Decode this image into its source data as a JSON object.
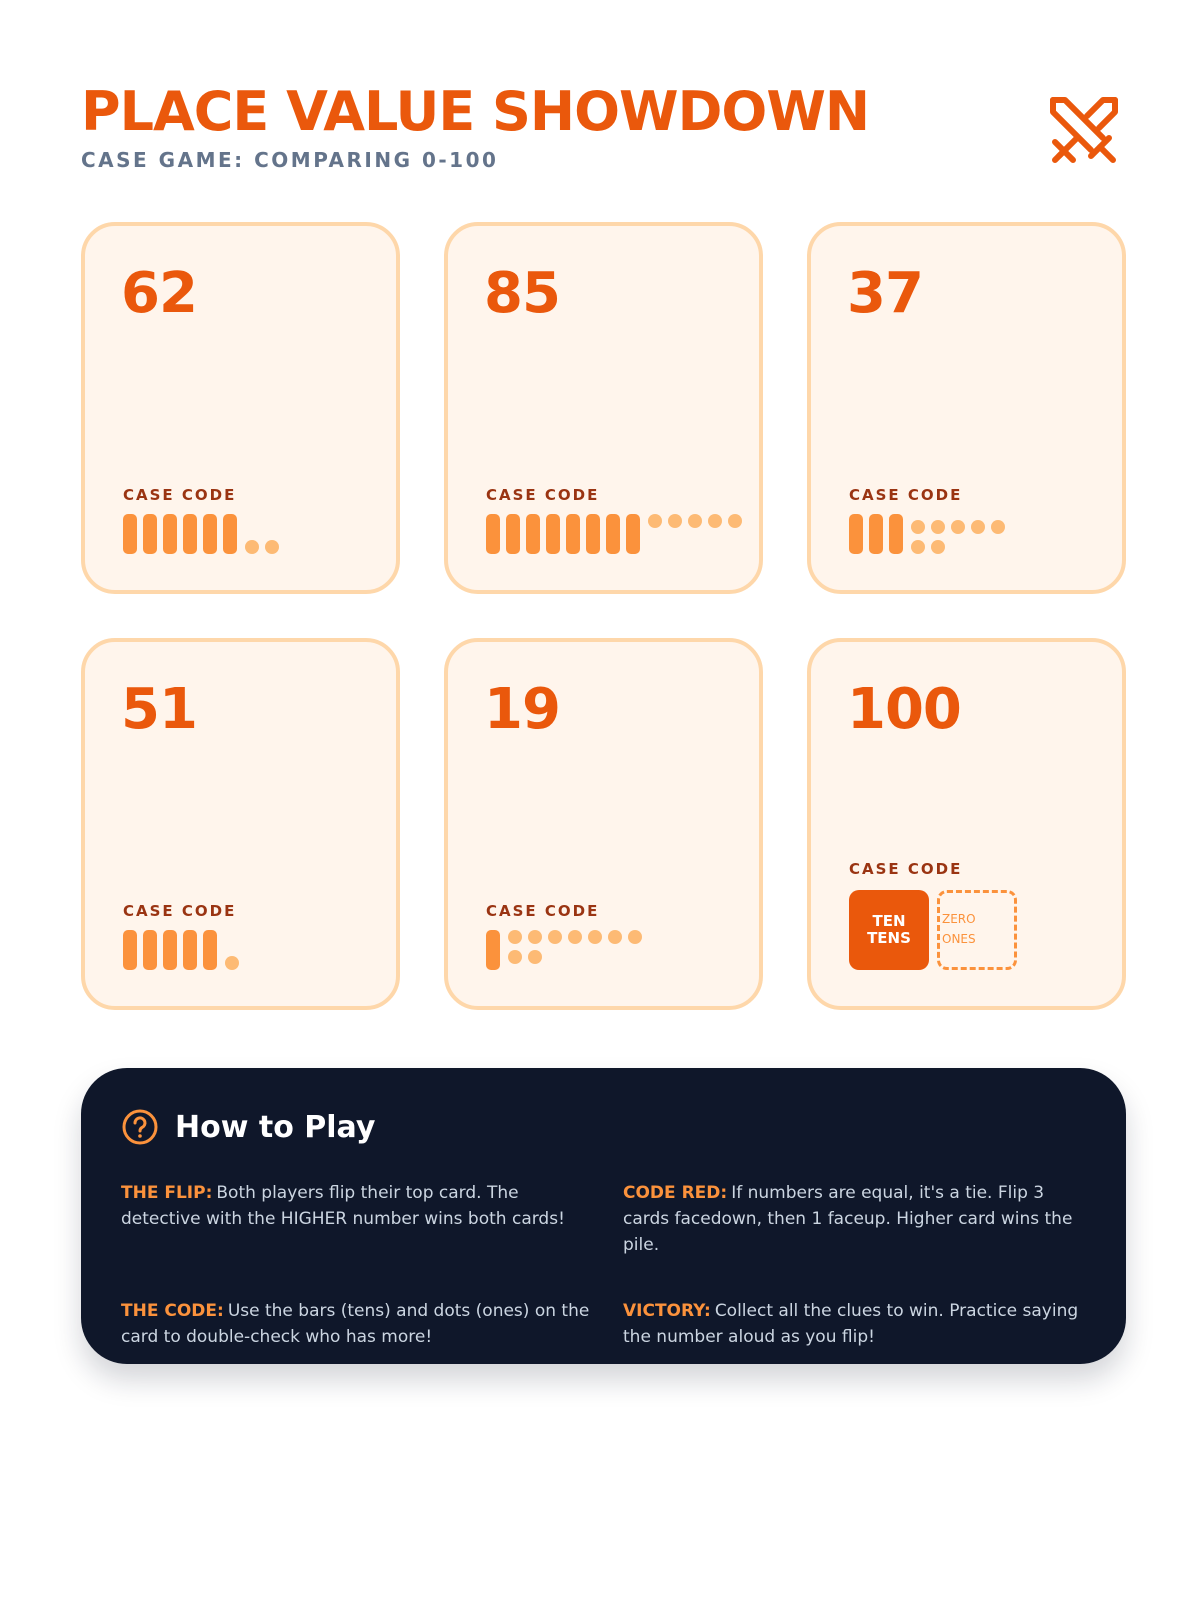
{
  "header": {
    "title": "PLACE VALUE SHOWDOWN",
    "subtitle": "CASE GAME: COMPARING 0-100",
    "icon": "crossed-swords-icon"
  },
  "colors": {
    "accent": "#ea580c",
    "card_bg": "#fff5ec",
    "card_border": "#fed7aa",
    "bar": "#fb923c",
    "dot": "#fdba74",
    "panel_bg": "#0f172a",
    "subtitle": "#64748b"
  },
  "cards": [
    {
      "number": "62",
      "code_label": "CASE CODE",
      "tens": 6,
      "ones": 2
    },
    {
      "number": "85",
      "code_label": "CASE CODE",
      "tens": 8,
      "ones": 5
    },
    {
      "number": "37",
      "code_label": "CASE CODE",
      "tens": 3,
      "ones": 7
    },
    {
      "number": "51",
      "code_label": "CASE CODE",
      "tens": 5,
      "ones": 1
    },
    {
      "number": "19",
      "code_label": "CASE CODE",
      "tens": 1,
      "ones": 9
    },
    {
      "number": "100",
      "code_label": "CASE CODE",
      "tens_box_line1": "TEN",
      "tens_box_line2": "TENS",
      "ones_box_line1": "ZERO",
      "ones_box_line2": "ONES"
    }
  ],
  "how_to_play": {
    "title": "How to Play",
    "icon": "question-circle-icon",
    "rules": [
      {
        "key": "THE FLIP:",
        "text": "Both players flip their top card. The detective with the HIGHER number wins both cards!"
      },
      {
        "key": "CODE RED:",
        "text": "If numbers are equal, it's a tie. Flip 3 cards facedown, then 1 faceup. Higher card wins the pile."
      },
      {
        "key": "THE CODE:",
        "text": "Use the bars (tens) and dots (ones) on the card to double-check who has more!"
      },
      {
        "key": "VICTORY:",
        "text": "Collect all the clues to win. Practice saying the number aloud as you flip!"
      }
    ]
  }
}
